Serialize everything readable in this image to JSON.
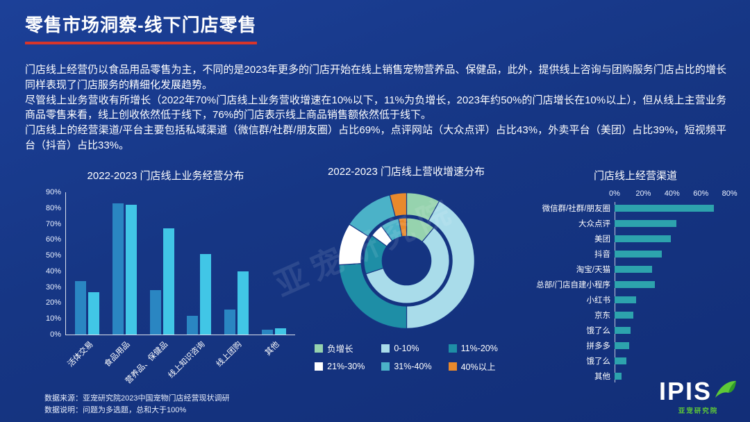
{
  "header": {
    "title": "零售市场洞察-线下门店零售",
    "underline_color": "#d8352a"
  },
  "intro": {
    "paragraphs": [
      "门店线上经营仍以食品用品零售为主，不同的是2023年更多的门店开始在线上销售宠物营养品、保健品，此外，提供线上咨询与团购服务门店占比的增长同样表现了门店服务的精细化发展趋势。",
      "尽管线上业务营收有所增长（2022年70%门店线上业务营收增速在10%以下，11%为负增长，2023年约50%的门店增长在10%以上），但从线上主营业务商品零售来看，线上创收依然低于线下，76%的门店表示线上商品销售额依然低于线下。",
      "门店线上的经营渠道/平台主要包括私域渠道（微信群/社群/朋友圈）占比69%，点评网站（大众点评）占比43%，外卖平台（美团）占比39%，短视频平台（抖音）占比33%。"
    ]
  },
  "watermark": {
    "text": "亚宠研究院"
  },
  "footer": {
    "notes": [
      "数据来源：亚宠研究院2023中国宠物门店经营现状调研",
      "数据说明：问题为多选题，总和大于100%"
    ]
  },
  "logo": {
    "text": "IPIS",
    "subtext": "亚宠研究院",
    "accent_color": "#5ec937"
  },
  "colors": {
    "background": "#163684"
  },
  "chart_data": [
    {
      "type": "bar",
      "title": "2022-2023 门店线上业务经营分布",
      "categories": [
        "活体交易",
        "食品用品",
        "营养品、保健品",
        "线上知识咨询",
        "线上团购",
        "其他"
      ],
      "series": [
        {
          "name": "2022",
          "color": "#2a86c2",
          "values": [
            34,
            83,
            28,
            12,
            16,
            3
          ]
        },
        {
          "name": "2023",
          "color": "#41c6e6",
          "values": [
            27,
            82,
            67,
            51,
            40,
            4
          ]
        }
      ],
      "ylim": [
        0,
        90
      ],
      "yticks": [
        "0%",
        "10%",
        "20%",
        "30%",
        "40%",
        "50%",
        "60%",
        "70%",
        "80%",
        "90%"
      ],
      "grid": false,
      "legend_position": "none"
    },
    {
      "type": "pie",
      "subtype": "double-ring-donut",
      "title": "2022-2023 门店线上营收增速分布",
      "labels": [
        "负增长",
        "0-10%",
        "11%-20%",
        "21%-30%",
        "31%-40%",
        "40%以上"
      ],
      "colors": [
        "#96d3ae",
        "#a9dcea",
        "#1e8ea6",
        "#ffffff",
        "#4bb2c8",
        "#e8892c"
      ],
      "rings": [
        {
          "ring": "outer",
          "name": "2023",
          "values": [
            8,
            42,
            24,
            10,
            12,
            4
          ]
        },
        {
          "ring": "inner",
          "name": "2022",
          "values": [
            11,
            59,
            15,
            5,
            7,
            3
          ]
        }
      ],
      "legend_position": "bottom"
    },
    {
      "type": "bar",
      "orientation": "horizontal",
      "title": "门店线上经营渠道",
      "categories": [
        "微信群/社群/朋友圈",
        "大众点评",
        "美团",
        "抖音",
        "淘宝/天猫",
        "总部/门店自建小程序",
        "小红书",
        "京东",
        "饿了么",
        "拼多多",
        "饿了么",
        "其他"
      ],
      "values": [
        69,
        43,
        39,
        33,
        26,
        28,
        15,
        13,
        11,
        10,
        8,
        5
      ],
      "xticks": [
        "0%",
        "20%",
        "40%",
        "60%",
        "80%"
      ],
      "xmax": 85,
      "bar_color": "#2da3ad",
      "grid": false
    }
  ]
}
